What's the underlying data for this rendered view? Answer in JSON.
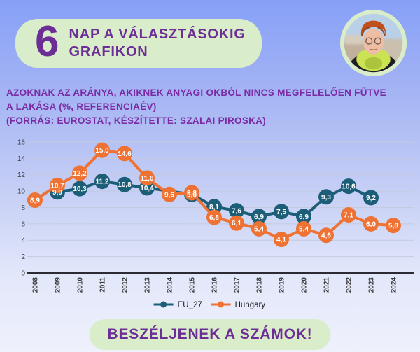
{
  "background": {
    "gradient_top": "#87a0f8",
    "gradient_bottom": "#eff1fc"
  },
  "header": {
    "number": "6",
    "line1": "NAP A VÁLASZTÁSOKIG",
    "line2": "GRAFIKON",
    "pill_color": "#d9edca",
    "text_color": "#6d2d96"
  },
  "profile_photo": {
    "alt": "Szalai Piroska portrait",
    "ring_color": "#d9edca"
  },
  "title_lines": [
    "AZOKNAK AZ ARÁNYA, AKIKNEK ANYAGI OKBÓL NINCS MEGFELELŐEN FŰTVE",
    "A LAKÁSA (%, REFERENCIAÉV)",
    "(FORRÁS: EUROSTAT, KÉSZÍTETTE: SZALAI PIROSKA)"
  ],
  "chart_data": {
    "type": "line",
    "title": "Azoknak az aránya, akiknek anyagi okból nincs megfelelően fűtve a lakása (%, referenciaév), forrás: Eurostat",
    "x": [
      2008,
      2009,
      2010,
      2011,
      2012,
      2013,
      2014,
      2015,
      2016,
      2017,
      2018,
      2019,
      2020,
      2021,
      2022,
      2023,
      2024
    ],
    "series": [
      {
        "name": "EU_27",
        "color": "#1c5e78",
        "values": [
          null,
          9.9,
          10.3,
          11.2,
          10.8,
          10.4,
          null,
          9.6,
          8.1,
          7.6,
          6.9,
          7.5,
          6.9,
          9.3,
          10.6,
          9.2,
          null
        ]
      },
      {
        "name": "Hungary",
        "color": "#ee7233",
        "values": [
          8.9,
          10.7,
          12.2,
          15.0,
          14.6,
          11.6,
          9.6,
          9.8,
          6.8,
          6.1,
          5.4,
          4.1,
          5.4,
          4.6,
          7.1,
          6.0,
          5.8
        ]
      }
    ],
    "ylim": [
      0,
      16
    ],
    "yticks": [
      0,
      2,
      4,
      6,
      8,
      10,
      12,
      14,
      16
    ],
    "xlabel": "",
    "ylabel": "",
    "grid": true,
    "legend_position": "bottom",
    "decimal_separator": ",",
    "marker_labels": true,
    "tick_color": "#3c3c3c",
    "grid_color": "#c4cadf",
    "axis_color": "#2b2b33",
    "label_text_color": "#ffffff"
  },
  "footer": {
    "label": "BESZÉLJENEK A SZÁMOK!",
    "pill_color": "#d9edca",
    "text_color": "#6d2d96"
  }
}
